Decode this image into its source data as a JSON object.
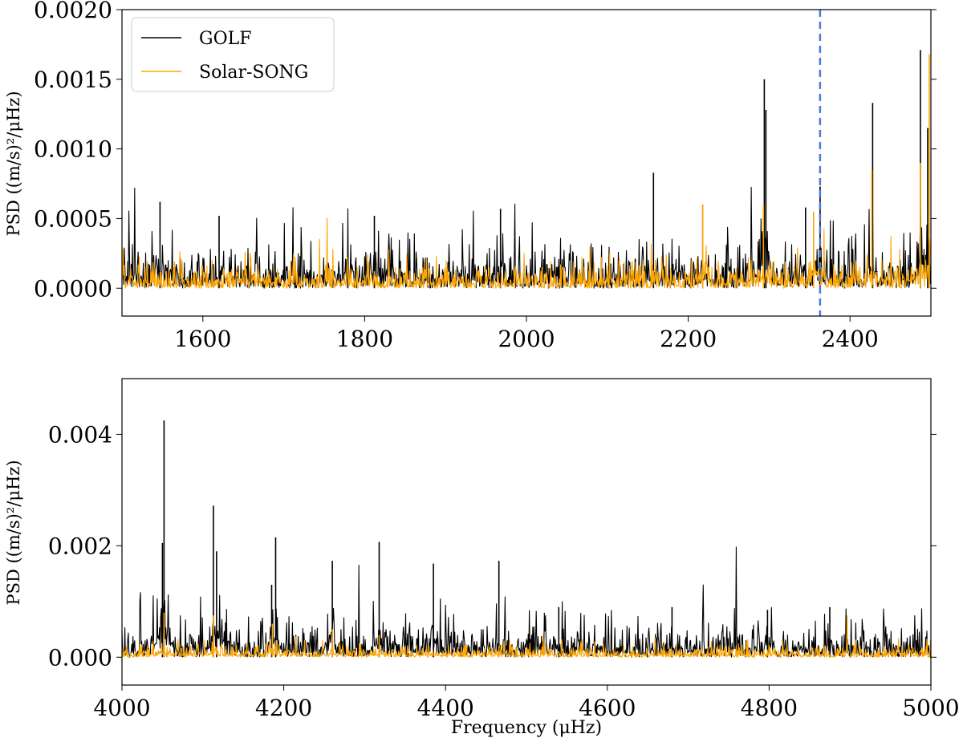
{
  "chart_data": [
    {
      "type": "line",
      "ylabel": "PSD ((m/s)²/μHz)",
      "xlabel": "",
      "xlim": [
        1500,
        2500
      ],
      "ylim": [
        -0.0002,
        0.002
      ],
      "xticks": [
        "1600",
        "1800",
        "2000",
        "2200",
        "2400"
      ],
      "yticks": [
        "0.0000",
        "0.0005",
        "0.0010",
        "0.0015",
        "0.0020"
      ],
      "legend": {
        "placement": "top-left",
        "entries": [
          "GOLF",
          "Solar-SONG"
        ]
      },
      "vline": {
        "x": 2363,
        "color": "#4a7bd9",
        "style": "dashed"
      },
      "series": [
        {
          "name": "GOLF",
          "color": "#000000",
          "baseline_level": 0.00012,
          "peaks": [
            [
              1547,
              0.00062
            ],
            [
              1620,
              0.00052
            ],
            [
              1812,
              0.00052
            ],
            [
              1968,
              0.00057
            ],
            [
              2157,
              0.00083
            ],
            [
              2218,
              0.0006
            ],
            [
              2294,
              0.0015
            ],
            [
              2296,
              0.00128
            ],
            [
              2345,
              0.00058
            ],
            [
              2363,
              0.00073
            ],
            [
              2428,
              0.00133
            ],
            [
              2487,
              0.00171
            ],
            [
              2496,
              0.00115
            ]
          ]
        },
        {
          "name": "Solar-SONG",
          "color": "#ffa500",
          "baseline_level": 7e-05,
          "peaks": [
            [
              2218,
              0.0006
            ],
            [
              2293,
              0.0006
            ],
            [
              2355,
              0.00055
            ],
            [
              2427,
              0.00085
            ],
            [
              2487,
              0.0009
            ],
            [
              2498,
              0.00168
            ]
          ]
        }
      ]
    },
    {
      "type": "line",
      "ylabel": "PSD ((m/s)²/μHz)",
      "xlabel": "Frequency (μHz)",
      "xlim": [
        4000,
        5000
      ],
      "ylim": [
        -0.0005,
        0.005
      ],
      "xticks": [
        "4000",
        "4200",
        "4400",
        "4600",
        "4800",
        "5000"
      ],
      "yticks": [
        "0.000",
        "0.002",
        "0.004"
      ],
      "series": [
        {
          "name": "GOLF",
          "color": "#000000",
          "baseline_level": 0.00025,
          "peaks": [
            [
              4052,
              0.00425
            ],
            [
              4050,
              0.00205
            ],
            [
              4113,
              0.00272
            ],
            [
              4117,
              0.0019
            ],
            [
              4190,
              0.00215
            ],
            [
              4185,
              0.0013
            ],
            [
              4260,
              0.00173
            ],
            [
              4318,
              0.00207
            ],
            [
              4385,
              0.00168
            ],
            [
              4466,
              0.00173
            ],
            [
              4540,
              0.0009
            ],
            [
              4680,
              0.0009
            ],
            [
              4798,
              0.00085
            ],
            [
              4875,
              0.0009
            ]
          ]
        },
        {
          "name": "Solar-SONG",
          "color": "#ffa500",
          "baseline_level": 8e-05,
          "peaks": [
            [
              4052,
              0.0008
            ],
            [
              4113,
              0.00075
            ],
            [
              4186,
              0.0006
            ],
            [
              4260,
              0.0005
            ],
            [
              4318,
              0.0004
            ],
            [
              4466,
              0.0002
            ]
          ]
        }
      ]
    }
  ]
}
